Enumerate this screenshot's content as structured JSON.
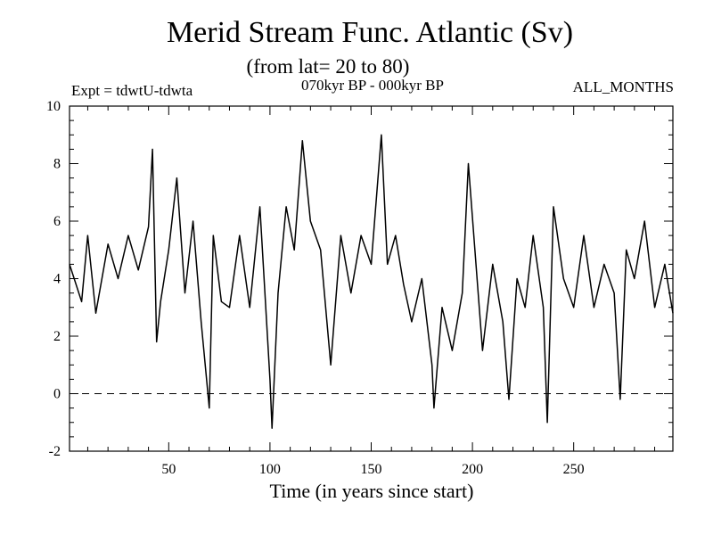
{
  "chart_data": {
    "type": "line",
    "title": "Merid Stream Func. Atlantic (Sv)",
    "subtitle": "(from lat= 20 to 80)",
    "annotations": {
      "left": "Expt = tdwtU-tdwta",
      "center": "070kyr BP - 000kyr BP",
      "right": "ALL_MONTHS"
    },
    "xlabel": "Time (in years since start)",
    "ylabel": "",
    "xlim": [
      1,
      299
    ],
    "ylim": [
      -2,
      10
    ],
    "x_ticks": [
      50,
      100,
      150,
      200,
      250
    ],
    "y_ticks": [
      -2,
      0,
      2,
      4,
      6,
      8,
      10
    ],
    "reference_line": {
      "y": 0,
      "style": "dashed"
    },
    "grid": false,
    "x": [
      1,
      7,
      10,
      14,
      20,
      25,
      30,
      35,
      40,
      42,
      44,
      46,
      50,
      54,
      58,
      62,
      66,
      70,
      72,
      76,
      80,
      85,
      90,
      95,
      100,
      101,
      104,
      108,
      112,
      116,
      120,
      125,
      130,
      135,
      140,
      145,
      150,
      155,
      158,
      162,
      166,
      170,
      175,
      180,
      181,
      185,
      190,
      195,
      198,
      205,
      210,
      215,
      218,
      222,
      226,
      230,
      235,
      237,
      240,
      245,
      250,
      255,
      260,
      265,
      270,
      273,
      276,
      280,
      285,
      290,
      295,
      299
    ],
    "y": [
      4.5,
      3.2,
      5.5,
      2.8,
      5.2,
      4.0,
      5.5,
      4.3,
      5.8,
      8.5,
      1.8,
      3.2,
      5.0,
      7.5,
      3.5,
      6.0,
      2.5,
      -0.5,
      5.5,
      3.2,
      3.0,
      5.5,
      3.0,
      6.5,
      0.5,
      -1.2,
      3.5,
      6.5,
      5.0,
      8.8,
      6.0,
      5.0,
      1.0,
      5.5,
      3.5,
      5.5,
      4.5,
      9.0,
      4.5,
      5.5,
      3.8,
      2.5,
      4.0,
      1.0,
      -0.5,
      3.0,
      1.5,
      3.5,
      8.0,
      1.5,
      4.5,
      2.5,
      -0.2,
      4.0,
      3.0,
      5.5,
      3.0,
      -1.0,
      6.5,
      4.0,
      3.0,
      5.5,
      3.0,
      4.5,
      3.5,
      -0.2,
      5.0,
      4.0,
      6.0,
      3.0,
      4.5,
      2.8
    ]
  }
}
